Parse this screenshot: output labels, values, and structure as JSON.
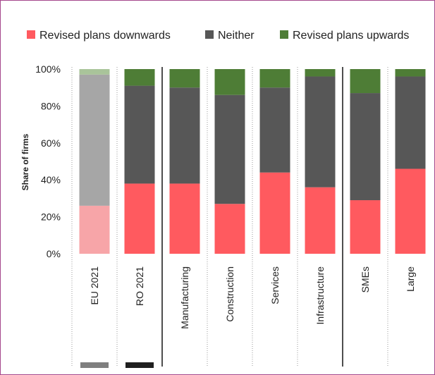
{
  "chart_data": {
    "type": "bar",
    "stacked": true,
    "title": "",
    "xlabel": "",
    "ylabel": "Share of firms",
    "ylim": [
      0,
      100
    ],
    "yticks": [
      "0%",
      "20%",
      "40%",
      "60%",
      "80%",
      "100%"
    ],
    "categories": [
      "EU 2021",
      "RO 2021",
      "Manufacturing",
      "Construction",
      "Services",
      "Infrastructure",
      "SMEs",
      "Large"
    ],
    "legend_position": "top",
    "grid": false,
    "series": [
      {
        "name": "Revised plans downwards",
        "color": "#ff5a5f",
        "faded_color": "#f7a5a8",
        "values": [
          26,
          38,
          38,
          27,
          44,
          36,
          29,
          46
        ]
      },
      {
        "name": "Neither",
        "color": "#575757",
        "faded_color": "#a6a6a6",
        "values": [
          71,
          53,
          52,
          59,
          46,
          60,
          58,
          50
        ]
      },
      {
        "name": "Revised plans upwards",
        "color": "#4e7d36",
        "faded_color": "#a9c49a",
        "values": [
          3,
          9,
          10,
          14,
          10,
          4,
          13,
          4
        ]
      }
    ],
    "faded_categories": [
      "EU 2021"
    ],
    "group_separators_after": [
      "RO 2021",
      "Infrastructure"
    ],
    "bottom_swatches": [
      {
        "category": "EU 2021",
        "color": "#7f7f7f"
      },
      {
        "category": "RO 2021",
        "color": "#1f1f1f"
      }
    ]
  }
}
